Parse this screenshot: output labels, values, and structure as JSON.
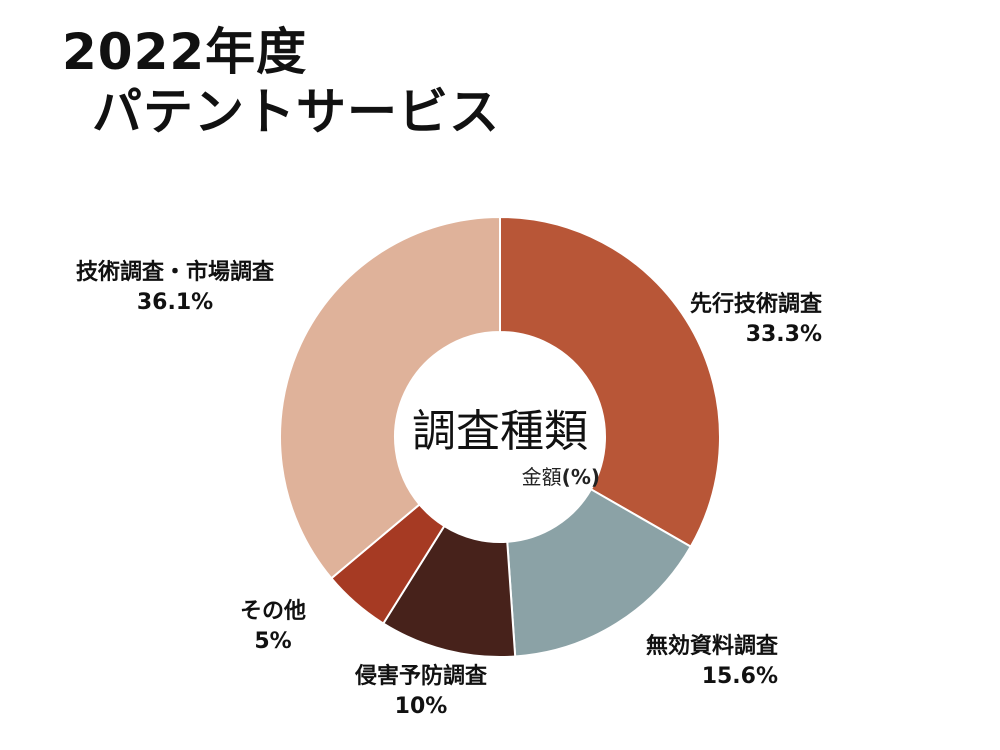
{
  "title": {
    "line1": "2022年度",
    "line2": "パテントサービス"
  },
  "center": {
    "title": "調査種類",
    "subtitle": "金額",
    "unit": "(%)"
  },
  "chart_data": {
    "type": "pie",
    "donut": true,
    "start": "top, clockwise",
    "categories": [
      "先行技術調査",
      "無効資料調査",
      "侵害予防調査",
      "その他",
      "技術調査・市場調査"
    ],
    "values": [
      33.3,
      15.6,
      10,
      5,
      36.1
    ],
    "value_labels": [
      "33.3%",
      "15.6%",
      "10%",
      "5%",
      "36.1%"
    ],
    "colors": [
      "#b85637",
      "#8ba2a6",
      "#47221b",
      "#a63a23",
      "#dfb29a"
    ],
    "legend": "none"
  }
}
